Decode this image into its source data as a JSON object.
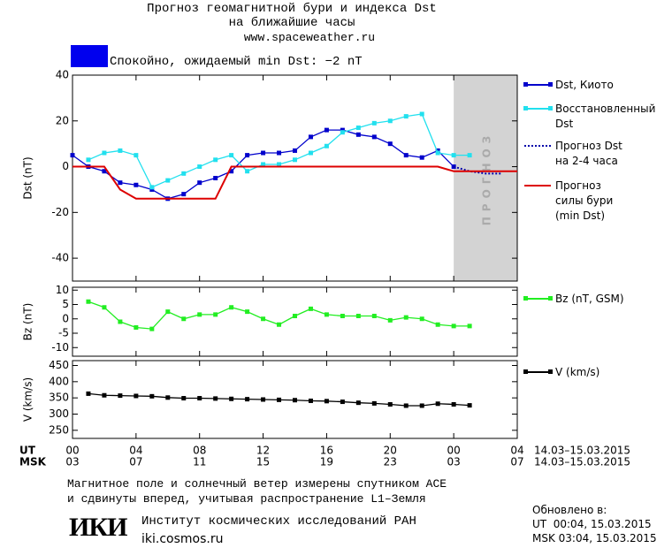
{
  "header": {
    "title": "Прогноз геомагнитной бури и индекса Dst\nна ближайшие часы",
    "url": "www.spaceweather.ru",
    "status": "Спокойно, ожидаемый min Dst: −2 nT",
    "status_color": "#0000ee"
  },
  "time_axis": {
    "ut_label": "UT",
    "msk_label": "MSK",
    "range": "14.03–15.03.2015",
    "ut_ticks": [
      {
        "value": 0,
        "label": "00"
      },
      {
        "value": 4,
        "label": "04"
      },
      {
        "value": 8,
        "label": "08"
      },
      {
        "value": 12,
        "label": "12"
      },
      {
        "value": 16,
        "label": "16"
      },
      {
        "value": 20,
        "label": "20"
      },
      {
        "value": 24,
        "label": "00"
      },
      {
        "value": 28,
        "label": "04"
      }
    ],
    "msk_ticks": [
      {
        "value": 0,
        "label": "03"
      },
      {
        "value": 4,
        "label": "07"
      },
      {
        "value": 8,
        "label": "11"
      },
      {
        "value": 12,
        "label": "15"
      },
      {
        "value": 16,
        "label": "19"
      },
      {
        "value": 20,
        "label": "23"
      },
      {
        "value": 24,
        "label": "03"
      },
      {
        "value": 28,
        "label": "07"
      }
    ]
  },
  "chart_data": [
    {
      "type": "line",
      "y_label": "Dst (nT)",
      "xlim": [
        0,
        28
      ],
      "xticks": [
        0,
        4,
        8,
        12,
        16,
        20,
        24,
        28
      ],
      "ylim": [
        -50,
        40
      ],
      "yticks": [
        -40,
        -20,
        0,
        20,
        40
      ],
      "forecast_region": [
        24,
        28
      ],
      "forecast_label": "ПРОГНОЗ",
      "forecast_color": "#d3d3d3",
      "series": [
        {
          "name": "Dst, Киото",
          "color": "#0000cc",
          "marker": "square",
          "x": [
            0,
            1,
            2,
            3,
            4,
            5,
            6,
            7,
            8,
            9,
            10,
            11,
            12,
            13,
            14,
            15,
            16,
            17,
            18,
            19,
            20,
            21,
            22,
            23,
            24
          ],
          "values": [
            5,
            0,
            -2,
            -7,
            -8,
            -10,
            -14,
            -12,
            -7,
            -5,
            -2,
            5,
            6,
            6,
            7,
            13,
            16,
            16,
            14,
            13,
            10,
            5,
            4,
            7,
            0
          ]
        },
        {
          "name": "Восстановленный\nDst",
          "color": "#22e0ee",
          "marker": "square",
          "x": [
            1,
            2,
            3,
            4,
            5,
            6,
            7,
            8,
            9,
            10,
            11,
            12,
            13,
            14,
            15,
            16,
            17,
            18,
            19,
            20,
            21,
            22,
            23,
            24,
            25
          ],
          "values": [
            3,
            6,
            7,
            5,
            -9,
            -6,
            -3,
            0,
            3,
            5,
            -2,
            1,
            1,
            3,
            6,
            9,
            15,
            17,
            19,
            20,
            22,
            23,
            6,
            5,
            5
          ]
        },
        {
          "name": "Прогноз Dst\nна 2-4 часа",
          "color": "#0000aa",
          "dash": "dotted",
          "x": [
            24,
            25,
            26,
            27
          ],
          "values": [
            0,
            -2,
            -3,
            -3
          ]
        },
        {
          "name": "Прогноз\nсилы бури\n(min Dst)",
          "color": "#dd0000",
          "x": [
            0,
            2,
            3,
            4,
            9,
            10,
            23,
            24,
            28
          ],
          "values": [
            0,
            0,
            -10,
            -14,
            -14,
            0,
            0,
            -2,
            -2
          ]
        }
      ]
    },
    {
      "type": "line",
      "y_label": "Bz (nT)",
      "xlim": [
        0,
        28
      ],
      "xticks": [
        0,
        4,
        8,
        12,
        16,
        20,
        24,
        28
      ],
      "ylim": [
        -13,
        11
      ],
      "yticks": [
        -10,
        -5,
        0,
        5,
        10
      ],
      "series": [
        {
          "name": "Bz (nT, GSM)",
          "color": "#22ee22",
          "marker": "square",
          "x": [
            1,
            2,
            3,
            4,
            5,
            6,
            7,
            8,
            9,
            10,
            11,
            12,
            13,
            14,
            15,
            16,
            17,
            18,
            19,
            20,
            21,
            22,
            23,
            24,
            25
          ],
          "values": [
            6,
            4,
            -1,
            -3,
            -3.5,
            2.5,
            0,
            1.5,
            1.5,
            4,
            2.5,
            0,
            -2,
            1,
            3.5,
            1.5,
            1,
            1,
            1,
            -0.5,
            0.5,
            0,
            -2,
            -2.5,
            -2.5
          ]
        }
      ]
    },
    {
      "type": "line",
      "y_label": "V (km/s)",
      "xlim": [
        0,
        28
      ],
      "xticks": [
        0,
        4,
        8,
        12,
        16,
        20,
        24,
        28
      ],
      "ylim": [
        225,
        465
      ],
      "yticks": [
        250,
        300,
        350,
        400,
        450
      ],
      "series": [
        {
          "name": "V (km/s)",
          "color": "#000000",
          "marker": "square",
          "x": [
            1,
            2,
            3,
            4,
            5,
            6,
            7,
            8,
            9,
            10,
            11,
            12,
            13,
            14,
            15,
            16,
            17,
            18,
            19,
            20,
            21,
            22,
            23,
            24,
            25
          ],
          "values": [
            363,
            358,
            357,
            356,
            355,
            351,
            349,
            349,
            348,
            347,
            346,
            345,
            344,
            343,
            341,
            340,
            338,
            335,
            333,
            330,
            326,
            326,
            332,
            330,
            327
          ]
        }
      ]
    }
  ],
  "footer": {
    "note": "Магнитное поле и солнечный ветер измерены спутником ACE\nи сдвинуты вперед, учитывая распространение L1–Земля",
    "logo": "ИКИ",
    "institute": "Институт космических исследований РАН",
    "site": "iki.cosmos.ru",
    "updated_title": "Обновлено в:",
    "updated_ut": "UT  00:04, 15.03.2015",
    "updated_msk": "MSK 03:04, 15.03.2015"
  }
}
